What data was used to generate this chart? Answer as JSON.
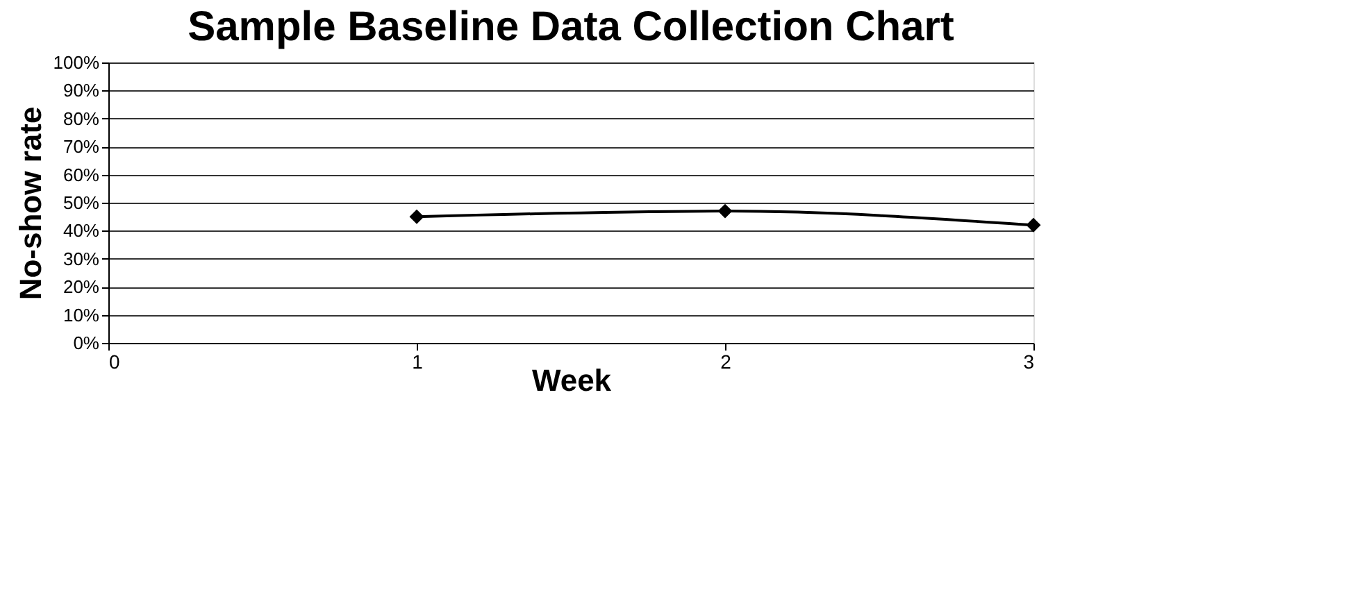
{
  "chart_data": {
    "type": "line",
    "title": "Sample Baseline Data Collection Chart",
    "xlabel": "Week",
    "ylabel": "No-show rate",
    "x": [
      1,
      2,
      3
    ],
    "series": [
      {
        "color": "#000000",
        "values": [
          45,
          47,
          42
        ]
      }
    ],
    "xlim": [
      0,
      3
    ],
    "xticks": [
      0,
      1,
      2,
      3
    ],
    "ylim": [
      0,
      100
    ],
    "yticks": [
      {
        "value": 0,
        "label": "0%"
      },
      {
        "value": 10,
        "label": "10%"
      },
      {
        "value": 20,
        "label": "20%"
      },
      {
        "value": 30,
        "label": "30%"
      },
      {
        "value": 40,
        "label": "40%"
      },
      {
        "value": 50,
        "label": "50%"
      },
      {
        "value": 60,
        "label": "60%"
      },
      {
        "value": 70,
        "label": "70%"
      },
      {
        "value": 80,
        "label": "80%"
      },
      {
        "value": 90,
        "label": "90%"
      },
      {
        "value": 100,
        "label": "100%"
      }
    ],
    "grid": "y",
    "marker": "diamond",
    "line_style": "solid"
  }
}
